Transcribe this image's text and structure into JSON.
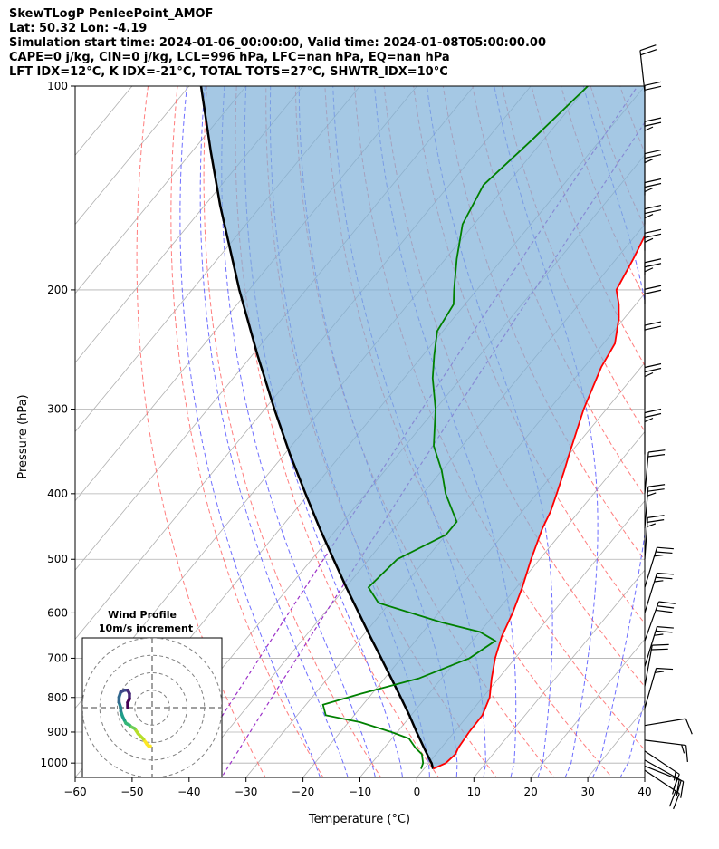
{
  "header": {
    "title": "SkewTLogP PenleePoint_AMOF",
    "location": "Lat: 50.32   Lon: -4.19",
    "times": "Simulation start time: 2024-01-06_00:00:00, Valid time: 2024-01-08T05:00:00.00",
    "indices1": "CAPE=0 j/kg, CIN=0 j/kg, LCL=996 hPa, LFC=nan hPa, EQ=nan hPa",
    "indices2": "LFT IDX=12°C, K IDX=-21°C, TOTAL TOTS=27°C, SHWTR_IDX=10°C"
  },
  "chart_data": {
    "type": "skewt",
    "xlabel": "Temperature (°C)",
    "ylabel": "Pressure (hPa)",
    "xlim": [
      -60,
      40
    ],
    "ylim": [
      1050,
      100
    ],
    "x_ticks": [
      -60,
      -50,
      -40,
      -30,
      -20,
      -10,
      0,
      10,
      20,
      30,
      40
    ],
    "x_tick_labels": [
      "−60",
      "−50",
      "−40",
      "−30",
      "−20",
      "−10",
      "0",
      "10",
      "20",
      "30",
      "40"
    ],
    "y_ticks": [
      1000,
      900,
      800,
      700,
      600,
      500,
      400,
      300,
      200,
      100
    ],
    "y_tick_labels": [
      "1000",
      "900",
      "800",
      "700",
      "600",
      "500",
      "400",
      "300",
      "200",
      "100"
    ],
    "grid": true,
    "colors": {
      "temperature": "#ff0000",
      "dewpoint": "#008000",
      "parcel": "#000000",
      "cin_fill": "#7fb0d8",
      "dry_adiabats": "#ff6666",
      "moist_adiabats": "#5555ff",
      "mixing_ratio": "#9b30c8",
      "isotherms": "#b0b0b0"
    },
    "temperature_profile": [
      [
        1020,
        1.6
      ],
      [
        1000,
        3.0
      ],
      [
        970,
        3.4
      ],
      [
        950,
        3.0
      ],
      [
        900,
        2.6
      ],
      [
        850,
        2.5
      ],
      [
        800,
        1.2
      ],
      [
        750,
        -1.2
      ],
      [
        700,
        -3.5
      ],
      [
        650,
        -5.5
      ],
      [
        600,
        -7.0
      ],
      [
        550,
        -9.0
      ],
      [
        500,
        -11.5
      ],
      [
        450,
        -14.0
      ],
      [
        425,
        -15.0
      ],
      [
        400,
        -16.5
      ],
      [
        370,
        -18.5
      ],
      [
        350,
        -20.0
      ],
      [
        300,
        -24.0
      ],
      [
        260,
        -27.0
      ],
      [
        240,
        -28.0
      ],
      [
        220,
        -31.0
      ],
      [
        210,
        -33.0
      ],
      [
        200,
        -35.5
      ],
      [
        180,
        -37.0
      ],
      [
        160,
        -39.0
      ],
      [
        140,
        -41.0
      ],
      [
        130,
        -43.0
      ],
      [
        120,
        -46.0
      ],
      [
        110,
        -48.5
      ],
      [
        100,
        -51.0
      ]
    ],
    "dewpoint_profile": [
      [
        1020,
        -0.5
      ],
      [
        1000,
        -1.0
      ],
      [
        970,
        -2.5
      ],
      [
        950,
        -4.5
      ],
      [
        920,
        -7.0
      ],
      [
        900,
        -11.0
      ],
      [
        870,
        -18.0
      ],
      [
        850,
        -25.0
      ],
      [
        820,
        -27.0
      ],
      [
        790,
        -22.0
      ],
      [
        750,
        -14.0
      ],
      [
        700,
        -8.0
      ],
      [
        660,
        -6.0
      ],
      [
        640,
        -10.0
      ],
      [
        620,
        -18.0
      ],
      [
        580,
        -32.0
      ],
      [
        550,
        -36.0
      ],
      [
        500,
        -35.0
      ],
      [
        460,
        -30.0
      ],
      [
        440,
        -30.0
      ],
      [
        400,
        -36.0
      ],
      [
        370,
        -40.0
      ],
      [
        340,
        -45.0
      ],
      [
        300,
        -50.0
      ],
      [
        270,
        -55.0
      ],
      [
        250,
        -58.0
      ],
      [
        230,
        -61.0
      ],
      [
        210,
        -62.0
      ],
      [
        200,
        -64.0
      ],
      [
        180,
        -68.0
      ],
      [
        160,
        -72.0
      ],
      [
        140,
        -74.0
      ],
      [
        120,
        -72.0
      ],
      [
        100,
        -70.0
      ]
    ],
    "parcel_profile": [
      [
        1020,
        1.6
      ],
      [
        1000,
        0.5
      ],
      [
        996,
        0.2
      ],
      [
        950,
        -3.0
      ],
      [
        900,
        -6.6
      ],
      [
        850,
        -10.3
      ],
      [
        800,
        -14.4
      ],
      [
        750,
        -18.8
      ],
      [
        700,
        -23.5
      ],
      [
        650,
        -28.6
      ],
      [
        600,
        -34.0
      ],
      [
        550,
        -39.9
      ],
      [
        500,
        -46.2
      ],
      [
        450,
        -53.1
      ],
      [
        400,
        -60.6
      ],
      [
        350,
        -69.0
      ],
      [
        300,
        -78.3
      ],
      [
        250,
        -89.0
      ],
      [
        200,
        -101.7
      ],
      [
        150,
        -117.3
      ],
      [
        125,
        -126.7
      ],
      [
        100,
        -137.9
      ]
    ],
    "winds": [
      {
        "p": 1025,
        "u": -9,
        "v": 6
      },
      {
        "p": 1010,
        "u": -10,
        "v": 4
      },
      {
        "p": 990,
        "u": -9,
        "v": 5
      },
      {
        "p": 960,
        "u": -6,
        "v": 4
      },
      {
        "p": 925,
        "u": -8,
        "v": 1
      },
      {
        "p": 880,
        "u": -6,
        "v": -1
      },
      {
        "p": 830,
        "u": -2,
        "v": -7
      },
      {
        "p": 770,
        "u": -2,
        "v": -11
      },
      {
        "p": 720,
        "u": -4,
        "v": -13
      },
      {
        "p": 660,
        "u": -5,
        "v": -14
      },
      {
        "p": 600,
        "u": -4,
        "v": -13
      },
      {
        "p": 550,
        "u": -4,
        "v": -13
      },
      {
        "p": 500,
        "u": -1,
        "v": -14
      },
      {
        "p": 450,
        "u": -1,
        "v": -12
      },
      {
        "p": 400,
        "u": -1,
        "v": -11
      },
      {
        "p": 350,
        "u": 0,
        "v": -13
      },
      {
        "p": 300,
        "u": 0,
        "v": -12
      },
      {
        "p": 260,
        "u": 0,
        "v": -10
      },
      {
        "p": 230,
        "u": 0,
        "v": -11
      },
      {
        "p": 210,
        "u": 0,
        "v": -12
      },
      {
        "p": 190,
        "u": 0,
        "v": -12
      },
      {
        "p": 175,
        "u": 0,
        "v": -13
      },
      {
        "p": 160,
        "u": 0,
        "v": -13
      },
      {
        "p": 145,
        "u": 0,
        "v": -12
      },
      {
        "p": 130,
        "u": 0,
        "v": -12
      },
      {
        "p": 115,
        "u": 0,
        "v": -11
      },
      {
        "p": 102,
        "u": 1,
        "v": -9
      }
    ],
    "hodograph": {
      "title": "Wind Profile",
      "subtitle": "10m/s increment",
      "rings_ms": [
        10,
        20,
        30,
        40
      ],
      "limit_ms": 40,
      "colormap": "viridis",
      "uv": [
        [
          -1,
          -22
        ],
        [
          -2,
          -22
        ],
        [
          -3,
          -21
        ],
        [
          -5,
          -18
        ],
        [
          -8,
          -15
        ],
        [
          -10,
          -12
        ],
        [
          -12,
          -11
        ],
        [
          -13,
          -10
        ],
        [
          -15,
          -9
        ],
        [
          -16,
          -7
        ],
        [
          -17,
          -5
        ],
        [
          -18,
          -2
        ],
        [
          -18,
          0
        ],
        [
          -19,
          3
        ],
        [
          -19,
          6
        ],
        [
          -18,
          9
        ],
        [
          -16,
          10
        ],
        [
          -14,
          10
        ],
        [
          -13,
          8
        ],
        [
          -13,
          5
        ],
        [
          -14,
          3
        ],
        [
          -14,
          0
        ]
      ]
    }
  }
}
